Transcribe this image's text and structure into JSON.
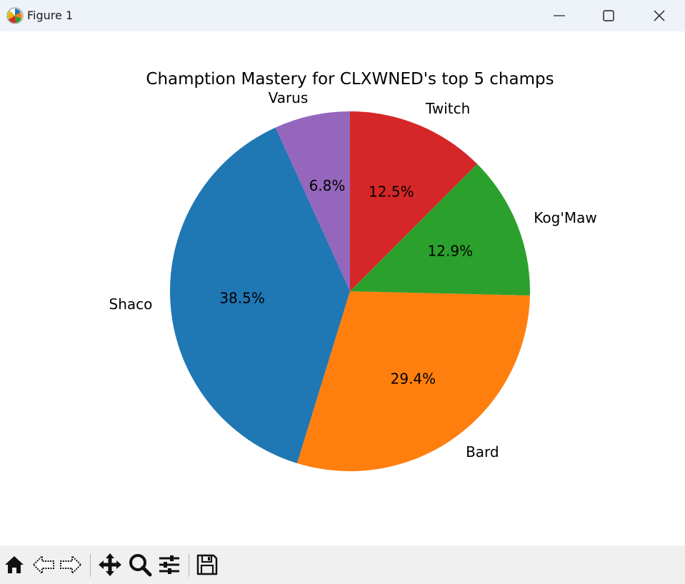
{
  "window": {
    "title": "Figure 1",
    "app_icon": "matplotlib-icon",
    "controls": [
      "minimize-icon",
      "maximize-icon",
      "close-icon"
    ]
  },
  "chart_data": {
    "type": "pie",
    "title": "Chamption Mastery for CLXWNED's top 5 champs",
    "start_angle_deg": 90,
    "direction": "counterclockwise",
    "slices": [
      {
        "label": "Varus",
        "percent": 6.8,
        "percent_label": "6.8%",
        "color": "#9467bd"
      },
      {
        "label": "Shaco",
        "percent": 38.5,
        "percent_label": "38.5%",
        "color": "#1f77b4"
      },
      {
        "label": "Bard",
        "percent": 29.4,
        "percent_label": "29.4%",
        "color": "#ff7f0e"
      },
      {
        "label": "Kog'Maw",
        "percent": 12.9,
        "percent_label": "12.9%",
        "color": "#2ca02c"
      },
      {
        "label": "Twitch",
        "percent": 12.5,
        "percent_label": "12.5%",
        "color": "#d62728"
      }
    ]
  },
  "toolbar": {
    "buttons": [
      "home-icon",
      "back-arrow-icon",
      "forward-arrow-icon",
      "pan-icon",
      "zoom-icon",
      "configure-subplots-icon",
      "save-icon"
    ]
  }
}
